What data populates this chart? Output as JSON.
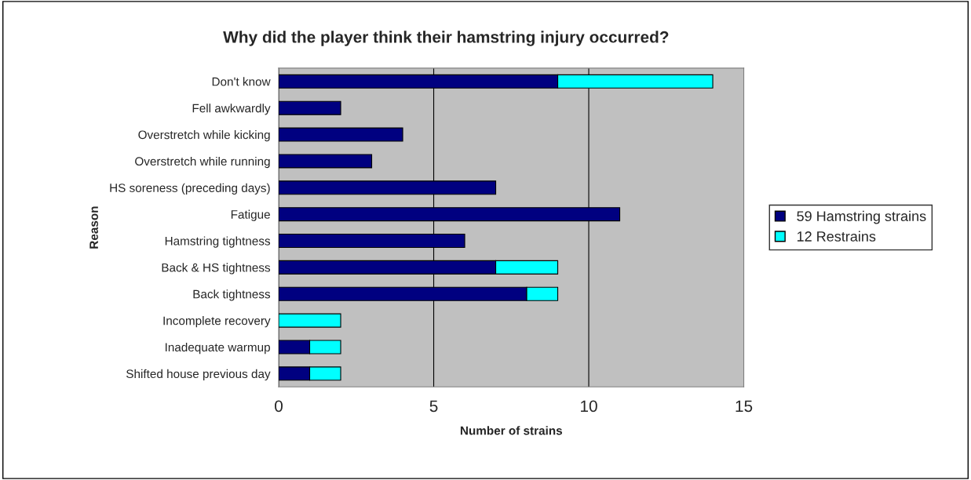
{
  "chart_data": {
    "type": "bar",
    "orientation": "horizontal",
    "stacked": true,
    "title": "Why did the player think their hamstring injury occurred?",
    "xlabel": "Number of strains",
    "ylabel": "Reason",
    "categories": [
      "Don't know",
      "Fell awkwardly",
      "Overstretch while kicking",
      "Overstretch while running",
      "HS soreness (preceding days)",
      "Fatigue",
      "Hamstring tightness",
      "Back & HS tightness",
      "Back tightness",
      "Incomplete recovery",
      "Inadequate warmup",
      "Shifted house previous day"
    ],
    "series": [
      {
        "name": "59 Hamstring strains",
        "color": "#000080",
        "values": [
          9,
          2,
          4,
          3,
          7,
          11,
          6,
          7,
          8,
          0,
          1,
          1
        ]
      },
      {
        "name": "12 Restrains",
        "color": "#00ffff",
        "values": [
          5,
          0,
          0,
          0,
          0,
          0,
          0,
          2,
          1,
          2,
          1,
          1
        ]
      }
    ],
    "xlim": [
      0,
      15
    ],
    "xticks": [
      0,
      5,
      10,
      15
    ],
    "grid": "x",
    "legend": "right"
  }
}
